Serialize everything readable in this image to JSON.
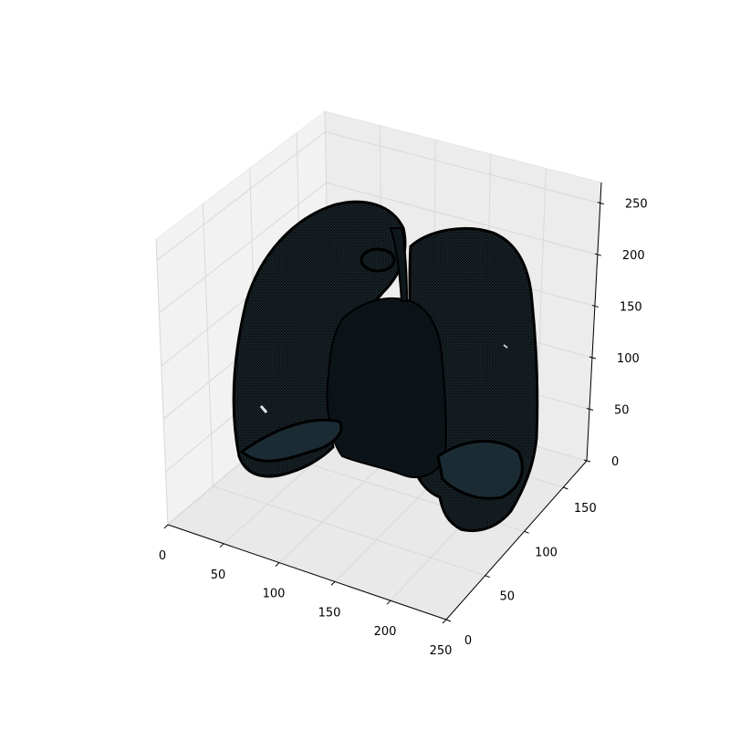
{
  "chart_data": {
    "type": "3d-surface",
    "title": "",
    "xlabel": "",
    "ylabel": "",
    "zlabel": "",
    "xlim": [
      0,
      250
    ],
    "ylim": [
      0,
      180
    ],
    "zlim": [
      0,
      270
    ],
    "x_ticks": [
      "0",
      "50",
      "100",
      "150",
      "200",
      "250"
    ],
    "y_ticks": [
      "0",
      "50",
      "100",
      "150"
    ],
    "z_ticks": [
      "0",
      "50",
      "100",
      "150",
      "200",
      "250"
    ],
    "grid": true,
    "pane_color": "#f2f2f2",
    "surface_color": "#1a2a30",
    "edge_color": "#000000"
  }
}
